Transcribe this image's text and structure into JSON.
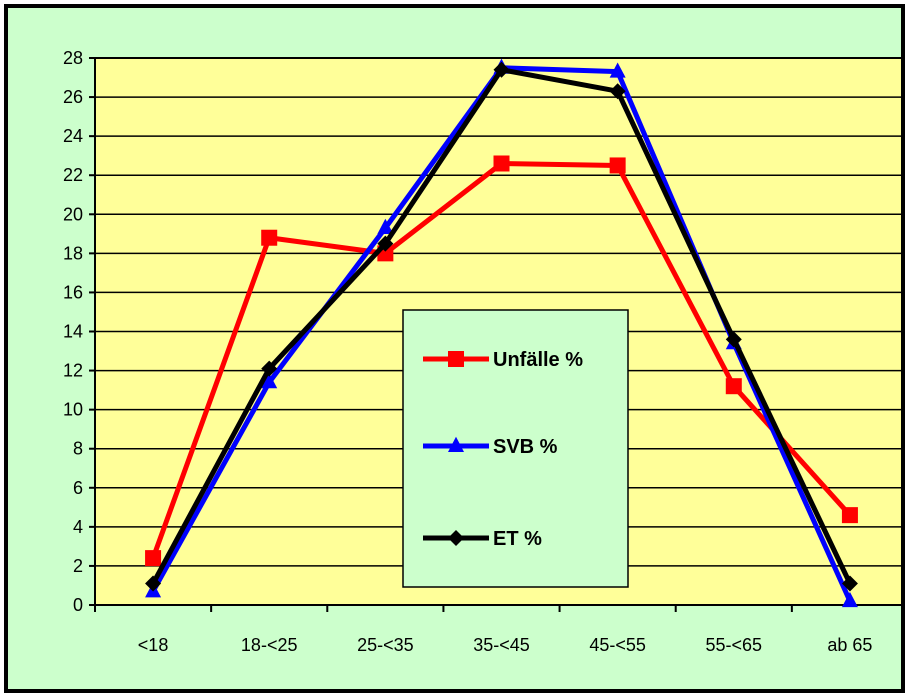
{
  "chart_data": {
    "type": "line",
    "title": "",
    "xlabel": "",
    "ylabel": "",
    "categories": [
      "<18",
      "18-<25",
      "25-<35",
      "35-<45",
      "45-<55",
      "55-<65",
      "ab 65"
    ],
    "ylim": [
      0,
      28
    ],
    "yticks": [
      0,
      2,
      4,
      6,
      8,
      10,
      12,
      14,
      16,
      18,
      20,
      22,
      24,
      26,
      28
    ],
    "grid": true,
    "legend_position": "center",
    "plot_background": "#ffff99",
    "figure_background": "#ccffcc",
    "series": [
      {
        "name": "Unfälle %",
        "color": "#ff0000",
        "marker": "square",
        "values": [
          2.4,
          18.8,
          18.0,
          22.6,
          22.5,
          11.2,
          4.6
        ]
      },
      {
        "name": "SVB %",
        "color": "#0000ff",
        "marker": "triangle",
        "values": [
          0.7,
          11.4,
          19.3,
          27.5,
          27.3,
          13.4,
          0.2
        ]
      },
      {
        "name": "ET %",
        "color": "#000000",
        "marker": "diamond",
        "values": [
          1.1,
          12.1,
          18.5,
          27.4,
          26.3,
          13.6,
          1.1
        ]
      }
    ]
  }
}
